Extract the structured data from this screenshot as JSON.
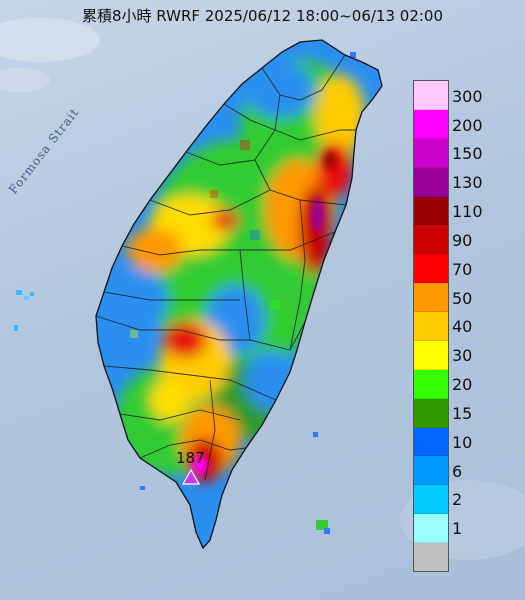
{
  "title": "累積8小時 RWRF 2025/06/12 18:00~06/13 02:00",
  "sea_label": "Formosa Strait",
  "peak": {
    "value": "187",
    "marker_color": "#cc33ff"
  },
  "legend": {
    "levels": [
      {
        "label": "300",
        "color": "#ffc9ff"
      },
      {
        "label": "200",
        "color": "#ff00ff"
      },
      {
        "label": "150",
        "color": "#cc00cc"
      },
      {
        "label": "130",
        "color": "#990099"
      },
      {
        "label": "110",
        "color": "#990000"
      },
      {
        "label": "90",
        "color": "#cc0000"
      },
      {
        "label": "70",
        "color": "#ff0000"
      },
      {
        "label": "50",
        "color": "#ff9900"
      },
      {
        "label": "40",
        "color": "#ffcc00"
      },
      {
        "label": "30",
        "color": "#ffff00"
      },
      {
        "label": "20",
        "color": "#33ff00"
      },
      {
        "label": "15",
        "color": "#339900"
      },
      {
        "label": "10",
        "color": "#0066ff"
      },
      {
        "label": "6",
        "color": "#0099ff"
      },
      {
        "label": "2",
        "color": "#00ccff"
      },
      {
        "label": "1",
        "color": "#99ffff"
      },
      {
        "label": "",
        "color": "#c0c0c0"
      }
    ]
  }
}
